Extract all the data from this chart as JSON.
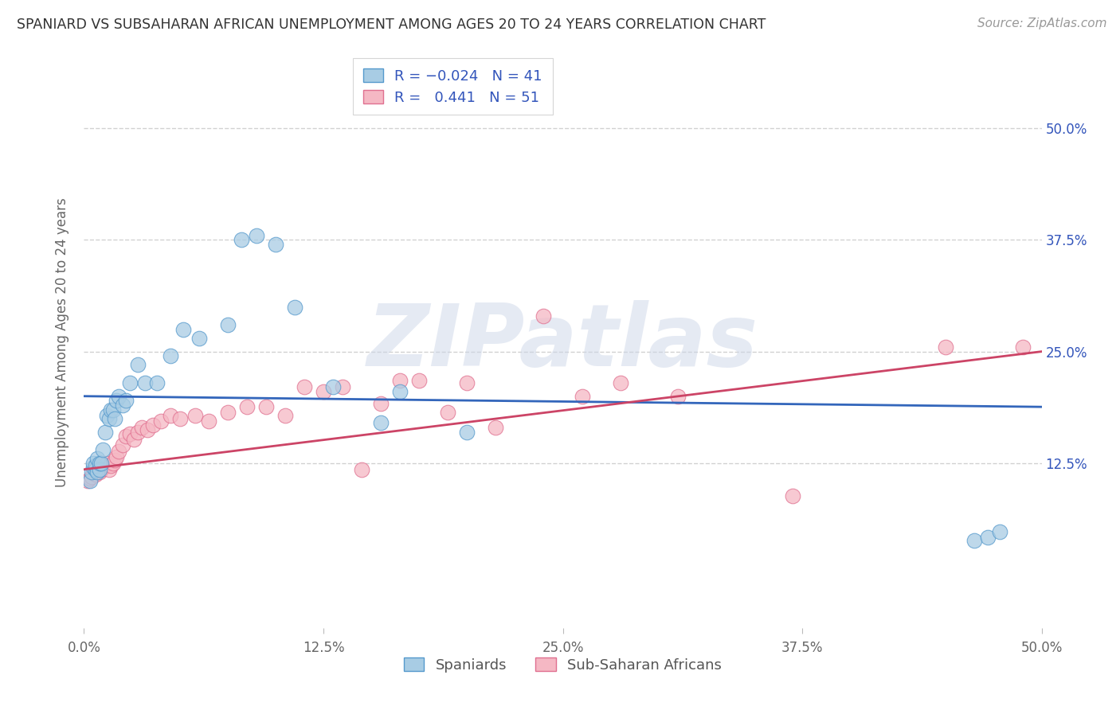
{
  "title": "SPANIARD VS SUBSAHARAN AFRICAN UNEMPLOYMENT AMONG AGES 20 TO 24 YEARS CORRELATION CHART",
  "source": "Source: ZipAtlas.com",
  "ylabel": "Unemployment Among Ages 20 to 24 years",
  "xlim": [
    0.0,
    0.5
  ],
  "ylim": [
    -0.06,
    0.58
  ],
  "xtick_vals": [
    0.0,
    0.125,
    0.25,
    0.375,
    0.5
  ],
  "xtick_labels": [
    "0.0%",
    "12.5%",
    "25.0%",
    "37.5%",
    "50.0%"
  ],
  "ytick_vals": [
    0.125,
    0.25,
    0.375,
    0.5
  ],
  "ytick_labels": [
    "12.5%",
    "25.0%",
    "37.5%",
    "50.0%"
  ],
  "blue_color": "#a8cce4",
  "pink_color": "#f5b8c4",
  "blue_edge": "#5599cc",
  "pink_edge": "#e07090",
  "blue_line_color": "#3366bb",
  "pink_line_color": "#cc4466",
  "watermark": "ZIPatlas",
  "background_color": "#ffffff",
  "grid_color": "#cccccc",
  "blue_trend_x": [
    0.0,
    0.5
  ],
  "blue_trend_y": [
    0.2,
    0.188
  ],
  "pink_trend_x": [
    0.0,
    0.5
  ],
  "pink_trend_y": [
    0.118,
    0.25
  ],
  "blue_x": [
    0.003,
    0.004,
    0.005,
    0.005,
    0.006,
    0.006,
    0.007,
    0.007,
    0.008,
    0.008,
    0.009,
    0.01,
    0.011,
    0.012,
    0.013,
    0.014,
    0.015,
    0.016,
    0.017,
    0.018,
    0.02,
    0.022,
    0.024,
    0.028,
    0.032,
    0.038,
    0.045,
    0.052,
    0.06,
    0.075,
    0.082,
    0.09,
    0.1,
    0.11,
    0.13,
    0.155,
    0.165,
    0.2,
    0.465,
    0.472,
    0.478
  ],
  "blue_y": [
    0.105,
    0.115,
    0.12,
    0.125,
    0.118,
    0.122,
    0.115,
    0.13,
    0.118,
    0.125,
    0.125,
    0.14,
    0.16,
    0.178,
    0.175,
    0.185,
    0.185,
    0.175,
    0.195,
    0.2,
    0.19,
    0.195,
    0.215,
    0.235,
    0.215,
    0.215,
    0.245,
    0.275,
    0.265,
    0.28,
    0.375,
    0.38,
    0.37,
    0.3,
    0.21,
    0.17,
    0.205,
    0.16,
    0.038,
    0.042,
    0.048
  ],
  "pink_x": [
    0.002,
    0.003,
    0.004,
    0.005,
    0.006,
    0.007,
    0.008,
    0.009,
    0.01,
    0.011,
    0.012,
    0.013,
    0.014,
    0.015,
    0.016,
    0.017,
    0.018,
    0.02,
    0.022,
    0.024,
    0.026,
    0.028,
    0.03,
    0.033,
    0.036,
    0.04,
    0.045,
    0.05,
    0.058,
    0.065,
    0.075,
    0.085,
    0.095,
    0.105,
    0.115,
    0.125,
    0.135,
    0.145,
    0.155,
    0.165,
    0.175,
    0.19,
    0.2,
    0.215,
    0.24,
    0.26,
    0.28,
    0.31,
    0.37,
    0.45,
    0.49
  ],
  "pink_y": [
    0.105,
    0.108,
    0.11,
    0.115,
    0.112,
    0.118,
    0.115,
    0.118,
    0.12,
    0.122,
    0.125,
    0.118,
    0.122,
    0.125,
    0.128,
    0.132,
    0.138,
    0.145,
    0.155,
    0.158,
    0.152,
    0.16,
    0.165,
    0.162,
    0.168,
    0.172,
    0.178,
    0.175,
    0.178,
    0.172,
    0.182,
    0.188,
    0.188,
    0.178,
    0.21,
    0.205,
    0.21,
    0.118,
    0.192,
    0.218,
    0.218,
    0.182,
    0.215,
    0.165,
    0.29,
    0.2,
    0.215,
    0.2,
    0.088,
    0.255,
    0.255
  ]
}
